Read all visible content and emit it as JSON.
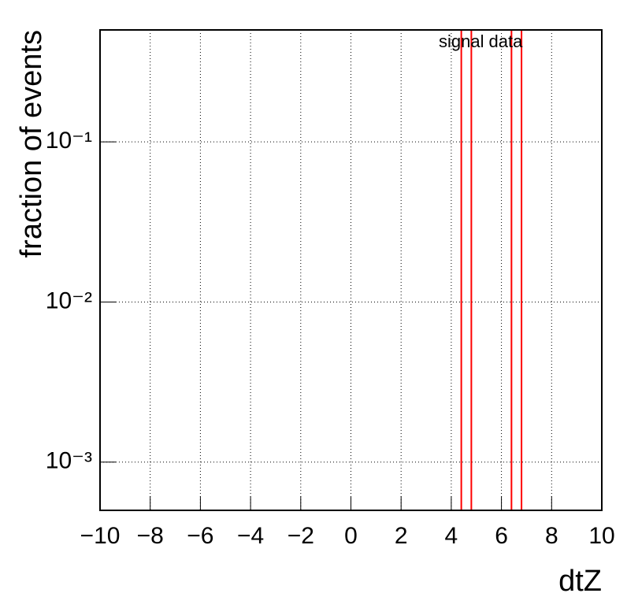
{
  "chart_data": {
    "type": "histogram",
    "x_label": "dtZ",
    "y_label": "fraction of events",
    "bins": [
      -10,
      4.4,
      4.8,
      6.4,
      6.8,
      10
    ],
    "series": [
      {
        "name": "signal",
        "color": "#ff0000",
        "label_color": "#ff0000",
        "values": [
          0,
          1,
          0,
          0,
          0
        ]
      },
      {
        "name": "data",
        "color": "#ff0000",
        "label_color": "#000000",
        "values": [
          0,
          0,
          0,
          1,
          0
        ]
      }
    ],
    "log_y": true,
    "xlim": [
      -10,
      10
    ],
    "xticks": [
      {
        "value": -10,
        "label": "−10"
      },
      {
        "value": -8,
        "label": "−8"
      },
      {
        "value": -6,
        "label": "−6"
      },
      {
        "value": -4,
        "label": "−4"
      },
      {
        "value": -2,
        "label": "−2"
      },
      0,
      2,
      4,
      6,
      8,
      10
    ],
    "ylim": [
      0.0005,
      0.5
    ],
    "yticks": [
      {
        "value": 0.001,
        "label": "10⁻³"
      },
      {
        "value": 0.01,
        "label": "10⁻²"
      },
      {
        "value": 0.1,
        "label": "10⁻¹"
      }
    ],
    "grid": true
  }
}
